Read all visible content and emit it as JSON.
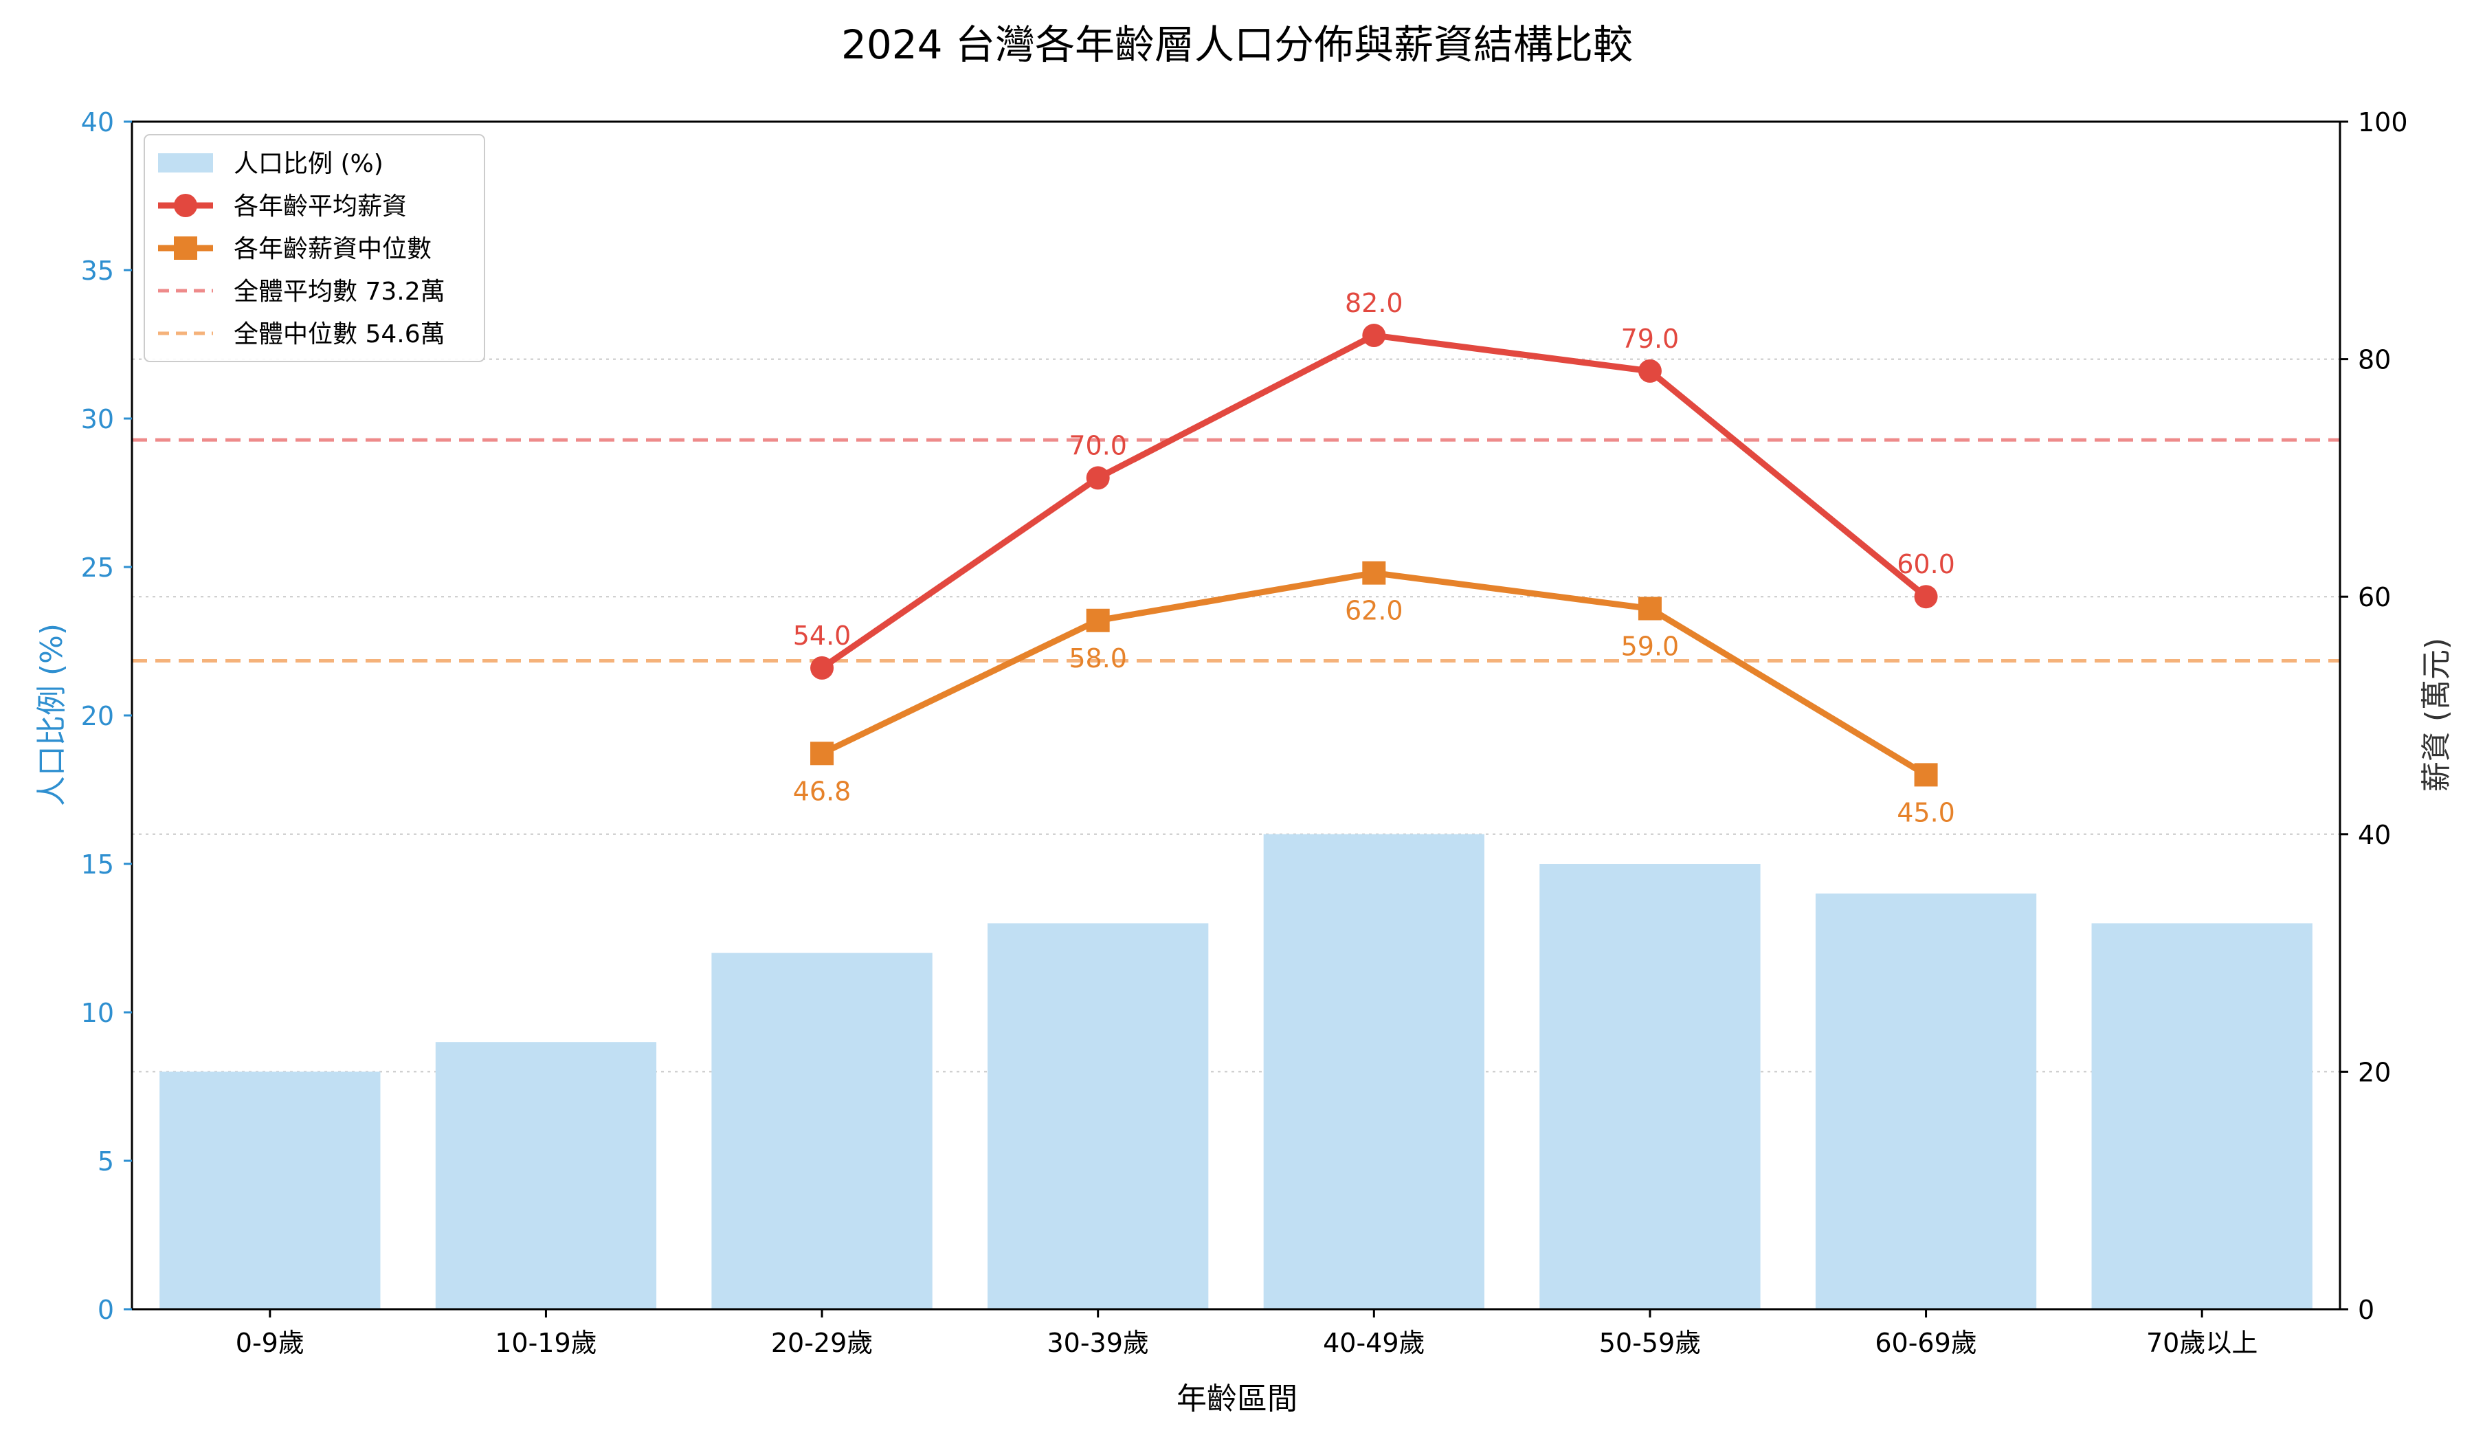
{
  "chart_data": {
    "type": "bar",
    "title": "2024 台灣各年齡層人口分佈與薪資結構比較",
    "xlabel": "年齡區間",
    "ylabel_left": "人口比例 (%)",
    "ylabel_right": "薪資 (萬元)",
    "categories": [
      "0-9歲",
      "10-19歲",
      "20-29歲",
      "30-39歲",
      "40-49歲",
      "50-59歲",
      "60-69歲",
      "70歲以上"
    ],
    "ylim_left": [
      0,
      40
    ],
    "ylim_right": [
      0,
      100
    ],
    "yticks_left": [
      0,
      5,
      10,
      15,
      20,
      25,
      30,
      35,
      40
    ],
    "yticks_right": [
      0,
      20,
      40,
      60,
      80,
      100
    ],
    "grid": "horizontal dotted",
    "legend_position": "top-left",
    "series": [
      {
        "name": "人口比例 (%)",
        "kind": "bar",
        "axis": "left",
        "color": "#c1dff3",
        "values": [
          8,
          9,
          12,
          13,
          16,
          15,
          14,
          13
        ]
      },
      {
        "name": "各年齡平均薪資",
        "kind": "line",
        "axis": "right",
        "color": "#e2483f",
        "marker": "circle",
        "values": [
          null,
          null,
          54.0,
          70.0,
          82.0,
          79.0,
          60.0,
          null
        ],
        "labels": [
          "",
          "",
          "54.0",
          "70.0",
          "82.0",
          "79.0",
          "60.0",
          ""
        ]
      },
      {
        "name": "各年齡薪資中位數",
        "kind": "line",
        "axis": "right",
        "color": "#e6822a",
        "marker": "square",
        "values": [
          null,
          null,
          46.8,
          58.0,
          62.0,
          59.0,
          45.0,
          null
        ],
        "labels": [
          "",
          "",
          "46.8",
          "58.0",
          "62.0",
          "59.0",
          "45.0",
          ""
        ]
      }
    ],
    "reference_lines": [
      {
        "name": "全體平均數 73.2萬",
        "axis": "right",
        "value": 73.2,
        "color": "#ee8a8a",
        "style": "dashed"
      },
      {
        "name": "全體中位數 54.6萬",
        "axis": "right",
        "value": 54.6,
        "color": "#f5b27a",
        "style": "dashed"
      }
    ],
    "colors": {
      "left_axis": "#2e8fd0",
      "right_axis": "#333333",
      "text": "#000000"
    }
  }
}
